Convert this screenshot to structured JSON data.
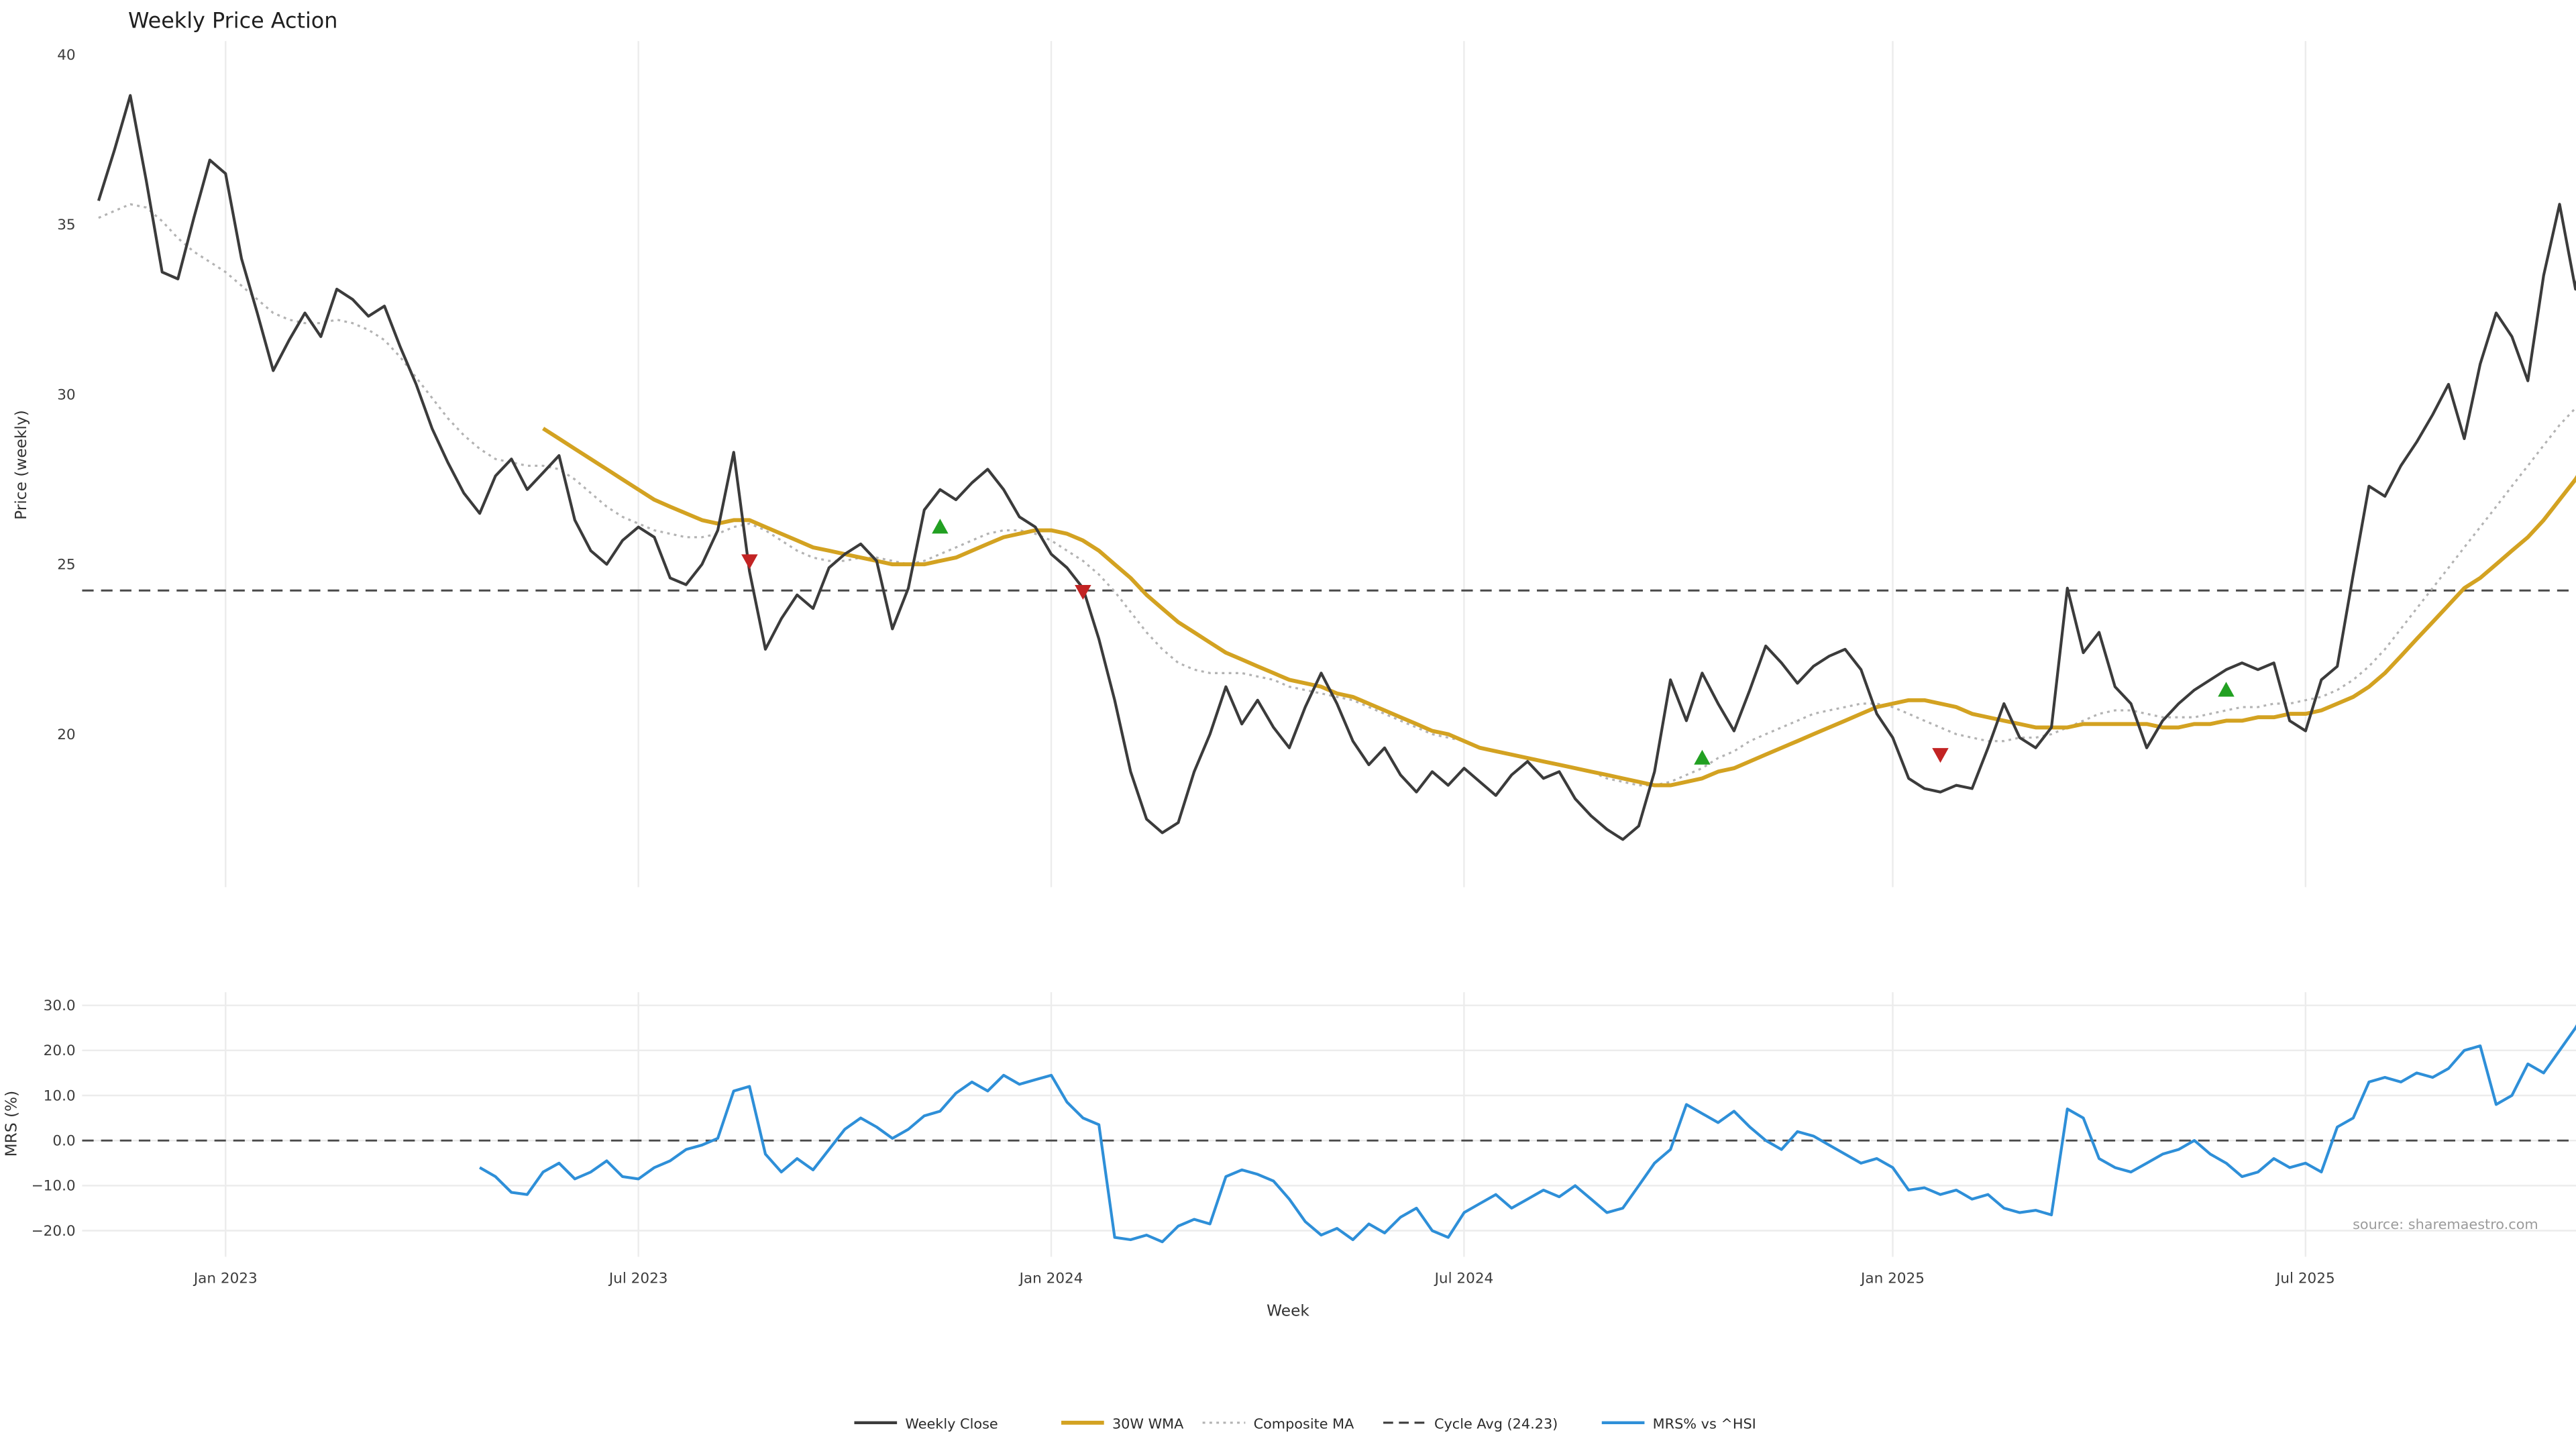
{
  "page": {
    "source": "source: sharemaestro.com"
  },
  "chart_data": {
    "type": "line",
    "title": "Weekly Price Action",
    "xlabel": "Week",
    "x_tick_labels": [
      "Jan 2023",
      "Jul 2023",
      "Jan 2024",
      "Jul 2024",
      "Jan 2025",
      "Jul 2025"
    ],
    "x_tick_weeks": [
      8,
      34,
      60,
      86,
      113,
      139
    ],
    "signal_colors": {
      "buy": "#22a022",
      "sell": "#c22323"
    },
    "panels": [
      {
        "name": "price",
        "ylabel": "Price (weekly)",
        "ylim": [
          15.5,
          40.4
        ],
        "yticks": [
          20,
          25,
          30,
          35,
          40
        ],
        "cycle_avg": 24.23,
        "series": [
          {
            "name": "Weekly Close",
            "color": "#3b3b3b",
            "style": "solid",
            "start_week": 0,
            "values": [
              35.7,
              37.2,
              38.8,
              36.3,
              33.6,
              33.4,
              35.2,
              36.9,
              36.5,
              34.0,
              32.4,
              30.7,
              31.6,
              32.4,
              31.7,
              33.1,
              32.8,
              32.3,
              32.6,
              31.4,
              30.3,
              29.0,
              28.0,
              27.1,
              26.5,
              27.6,
              28.1,
              27.2,
              27.7,
              28.2,
              26.3,
              25.4,
              25.0,
              25.7,
              26.1,
              25.8,
              24.6,
              24.4,
              25.0,
              26.0,
              28.3,
              24.8,
              22.5,
              23.4,
              24.1,
              23.7,
              24.9,
              25.3,
              25.6,
              25.1,
              23.1,
              24.3,
              26.6,
              27.2,
              26.9,
              27.4,
              27.8,
              27.2,
              26.4,
              26.1,
              25.3,
              24.9,
              24.3,
              22.8,
              21.0,
              18.9,
              17.5,
              17.1,
              17.4,
              18.9,
              20.0,
              21.4,
              20.3,
              21.0,
              20.2,
              19.6,
              20.8,
              21.8,
              20.9,
              19.8,
              19.1,
              19.6,
              18.8,
              18.3,
              18.9,
              18.5,
              19.0,
              18.6,
              18.2,
              18.8,
              19.2,
              18.7,
              18.9,
              18.1,
              17.6,
              17.2,
              16.9,
              17.3,
              18.9,
              21.6,
              20.4,
              21.8,
              20.9,
              20.1,
              21.3,
              22.6,
              22.1,
              21.5,
              22.0,
              22.3,
              22.5,
              21.9,
              20.6,
              19.9,
              18.7,
              18.4,
              18.3,
              18.5,
              18.4,
              19.6,
              20.9,
              19.9,
              19.6,
              20.2,
              24.3,
              22.4,
              23.0,
              21.4,
              20.9,
              19.6,
              20.4,
              20.9,
              21.3,
              21.6,
              21.9,
              22.1,
              21.9,
              22.1,
              20.4,
              20.1,
              21.6,
              22.0,
              24.7,
              27.3,
              27.0,
              27.9,
              28.6,
              29.4,
              30.3,
              28.7,
              30.9,
              32.4,
              31.7,
              30.4,
              33.5,
              35.6,
              33.1,
              35.4
            ]
          },
          {
            "name": "30W WMA",
            "color": "#d3a221",
            "style": "solid",
            "start_week": 28,
            "values": [
              29.0,
              28.7,
              28.4,
              28.1,
              27.8,
              27.5,
              27.2,
              26.9,
              26.7,
              26.5,
              26.3,
              26.2,
              26.3,
              26.3,
              26.1,
              25.9,
              25.7,
              25.5,
              25.4,
              25.3,
              25.2,
              25.1,
              25.0,
              25.0,
              25.0,
              25.1,
              25.2,
              25.4,
              25.6,
              25.8,
              25.9,
              26.0,
              26.0,
              25.9,
              25.7,
              25.4,
              25.0,
              24.6,
              24.1,
              23.7,
              23.3,
              23.0,
              22.7,
              22.4,
              22.2,
              22.0,
              21.8,
              21.6,
              21.5,
              21.4,
              21.2,
              21.1,
              20.9,
              20.7,
              20.5,
              20.3,
              20.1,
              20.0,
              19.8,
              19.6,
              19.5,
              19.4,
              19.3,
              19.2,
              19.1,
              19.0,
              18.9,
              18.8,
              18.7,
              18.6,
              18.5,
              18.5,
              18.6,
              18.7,
              18.9,
              19.0,
              19.2,
              19.4,
              19.6,
              19.8,
              20.0,
              20.2,
              20.4,
              20.6,
              20.8,
              20.9,
              21.0,
              21.0,
              20.9,
              20.8,
              20.6,
              20.5,
              20.4,
              20.3,
              20.2,
              20.2,
              20.2,
              20.3,
              20.3,
              20.3,
              20.3,
              20.3,
              20.2,
              20.2,
              20.3,
              20.3,
              20.4,
              20.4,
              20.5,
              20.5,
              20.6,
              20.6,
              20.7,
              20.9,
              21.1,
              21.4,
              21.8,
              22.3,
              22.8,
              23.3,
              23.8,
              24.3,
              24.6,
              25.0,
              25.4,
              25.8,
              26.3,
              26.9,
              27.5,
              28.2
            ]
          },
          {
            "name": "Composite MA",
            "color": "#b3b3b3",
            "style": "dotted",
            "start_week": 0,
            "values": [
              35.2,
              35.4,
              35.6,
              35.5,
              35.1,
              34.6,
              34.2,
              33.9,
              33.6,
              33.2,
              32.8,
              32.4,
              32.2,
              32.1,
              32.1,
              32.2,
              32.1,
              31.9,
              31.6,
              31.1,
              30.5,
              29.9,
              29.3,
              28.8,
              28.4,
              28.1,
              28.0,
              27.9,
              27.9,
              27.8,
              27.5,
              27.1,
              26.7,
              26.4,
              26.2,
              26.0,
              25.9,
              25.8,
              25.8,
              25.9,
              26.1,
              26.2,
              26.0,
              25.7,
              25.4,
              25.2,
              25.1,
              25.1,
              25.2,
              25.2,
              25.1,
              25.0,
              25.1,
              25.3,
              25.5,
              25.7,
              25.9,
              26.0,
              26.0,
              25.9,
              25.7,
              25.4,
              25.1,
              24.7,
              24.2,
              23.6,
              23.0,
              22.5,
              22.1,
              21.9,
              21.8,
              21.8,
              21.8,
              21.7,
              21.6,
              21.4,
              21.3,
              21.2,
              21.1,
              21.0,
              20.8,
              20.6,
              20.4,
              20.2,
              20.0,
              19.9,
              19.8,
              19.6,
              19.5,
              19.4,
              19.3,
              19.2,
              19.1,
              19.0,
              18.9,
              18.7,
              18.6,
              18.5,
              18.5,
              18.6,
              18.8,
              19.0,
              19.3,
              19.5,
              19.8,
              20.0,
              20.2,
              20.4,
              20.6,
              20.7,
              20.8,
              20.9,
              20.9,
              20.8,
              20.6,
              20.4,
              20.2,
              20.0,
              19.9,
              19.8,
              19.8,
              19.9,
              19.9,
              20.0,
              20.2,
              20.4,
              20.6,
              20.7,
              20.7,
              20.6,
              20.5,
              20.5,
              20.5,
              20.6,
              20.7,
              20.8,
              20.8,
              20.9,
              20.9,
              21.0,
              21.1,
              21.3,
              21.6,
              22.0,
              22.5,
              23.1,
              23.7,
              24.3,
              24.9,
              25.5,
              26.1,
              26.7,
              27.3,
              27.9,
              28.5,
              29.1,
              29.6,
              30.0
            ]
          }
        ],
        "signals": [
          {
            "week": 41,
            "value": 25.1,
            "type": "sell"
          },
          {
            "week": 53,
            "value": 26.1,
            "type": "buy"
          },
          {
            "week": 62,
            "value": 24.2,
            "type": "sell"
          },
          {
            "week": 101,
            "value": 19.3,
            "type": "buy"
          },
          {
            "week": 116,
            "value": 19.4,
            "type": "sell"
          },
          {
            "week": 134,
            "value": 21.3,
            "type": "buy"
          }
        ]
      },
      {
        "name": "mrs",
        "ylabel": "MRS (%)",
        "ylim": [
          -25.8,
          32.9
        ],
        "yticks": [
          -20,
          -10,
          0,
          10,
          20,
          30
        ],
        "zero_line": 0,
        "series": [
          {
            "name": "MRS% vs ^HSI",
            "color": "#2e8fd8",
            "style": "solid",
            "start_week": 24,
            "values": [
              -6.0,
              -8.0,
              -11.5,
              -12.0,
              -7.0,
              -5.0,
              -8.5,
              -7.0,
              -4.5,
              -8.0,
              -8.5,
              -6.0,
              -4.5,
              -2.0,
              -1.0,
              0.5,
              11.0,
              12.0,
              -3.0,
              -7.0,
              -4.0,
              -6.5,
              -2.0,
              2.5,
              5.0,
              3.0,
              0.5,
              2.5,
              5.5,
              6.5,
              10.5,
              13.0,
              11.0,
              14.5,
              12.5,
              13.5,
              14.5,
              8.5,
              5.0,
              3.5,
              -21.5,
              -22.0,
              -21.0,
              -22.5,
              -19.0,
              -17.5,
              -18.5,
              -8.0,
              -6.5,
              -7.5,
              -9.0,
              -13.0,
              -18.0,
              -21.0,
              -19.5,
              -22.0,
              -18.5,
              -20.5,
              -17.0,
              -15.0,
              -20.0,
              -21.5,
              -16.0,
              -14.0,
              -12.0,
              -15.0,
              -13.0,
              -11.0,
              -12.5,
              -10.0,
              -13.0,
              -16.0,
              -15.0,
              -10.0,
              -5.0,
              -2.0,
              8.0,
              6.0,
              4.0,
              6.5,
              3.0,
              0.0,
              -2.0,
              2.0,
              1.0,
              -1.0,
              -3.0,
              -5.0,
              -4.0,
              -6.0,
              -11.0,
              -10.5,
              -12.0,
              -11.0,
              -13.0,
              -12.0,
              -15.0,
              -16.0,
              -15.5,
              -16.5,
              7.0,
              5.0,
              -4.0,
              -6.0,
              -7.0,
              -5.0,
              -3.0,
              -2.0,
              0.0,
              -3.0,
              -5.0,
              -8.0,
              -7.0,
              -4.0,
              -6.0,
              -5.0,
              -7.0,
              3.0,
              5.0,
              13.0,
              14.0,
              13.0,
              15.0,
              14.0,
              16.0,
              20.0,
              21.0,
              8.0,
              10.0,
              17.0,
              15.0,
              20.0,
              25.0,
              31.0
            ]
          }
        ]
      }
    ],
    "legend": [
      {
        "label": "Weekly Close",
        "color": "#3b3b3b",
        "style": "solid"
      },
      {
        "label": "30W WMA",
        "color": "#d3a221",
        "style": "solid"
      },
      {
        "label": "Composite MA",
        "color": "#b3b3b3",
        "style": "dotted"
      },
      {
        "label": "Cycle Avg (24.23)",
        "color": "#3c3c3c",
        "style": "dashed"
      },
      {
        "label": "MRS% vs ^HSI",
        "color": "#2e8fd8",
        "style": "solid"
      }
    ]
  }
}
